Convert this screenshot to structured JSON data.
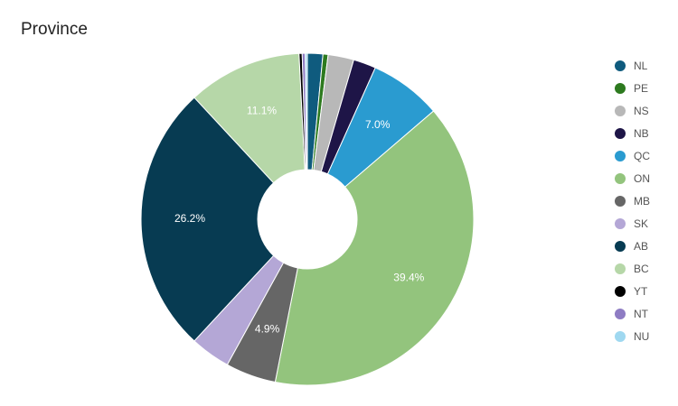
{
  "chart_data": {
    "type": "pie",
    "variant": "donut",
    "title": "Province",
    "legend_position": "right",
    "slice_label_color": "#ffffff",
    "series": [
      {
        "name": "NL",
        "value": 1.5,
        "color": "#0f5b7e"
      },
      {
        "name": "PE",
        "value": 0.5,
        "color": "#2d7a1f"
      },
      {
        "name": "NS",
        "value": 2.5,
        "color": "#b8b8b8"
      },
      {
        "name": "NB",
        "value": 2.2,
        "color": "#1e1547"
      },
      {
        "name": "QC",
        "value": 7.0,
        "color": "#2a9bd0",
        "label": "7.0%"
      },
      {
        "name": "ON",
        "value": 39.4,
        "color": "#93c47d",
        "label": "39.4%"
      },
      {
        "name": "MB",
        "value": 4.9,
        "color": "#666666",
        "label": "4.9%"
      },
      {
        "name": "SK",
        "value": 3.9,
        "color": "#b4a7d6"
      },
      {
        "name": "AB",
        "value": 26.2,
        "color": "#073b52",
        "label": "26.2%"
      },
      {
        "name": "BC",
        "value": 11.1,
        "color": "#b6d7a8",
        "label": "11.1%"
      },
      {
        "name": "YT",
        "value": 0.3,
        "color": "#000000"
      },
      {
        "name": "NT",
        "value": 0.3,
        "color": "#8e7cc3"
      },
      {
        "name": "NU",
        "value": 0.2,
        "color": "#9fd8f0"
      }
    ]
  }
}
